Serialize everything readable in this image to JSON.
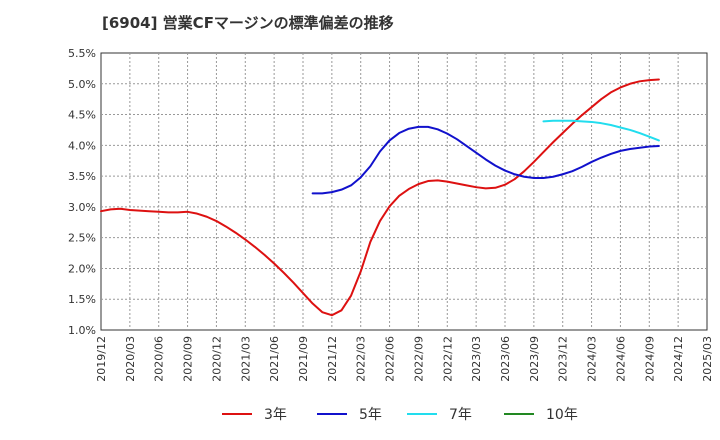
{
  "chart_data": {
    "type": "line",
    "title": "[6904]  営業CFマージンの標準偏差の推移",
    "ylim": [
      1.0,
      5.5
    ],
    "y_ticks": [
      "1.0%",
      "1.5%",
      "2.0%",
      "2.5%",
      "3.0%",
      "3.5%",
      "4.0%",
      "4.5%",
      "5.0%",
      "5.5%"
    ],
    "x_range": [
      "2019/12",
      "2025/03"
    ],
    "x_ticks": [
      "2019/12",
      "2020/03",
      "2020/06",
      "2020/09",
      "2020/12",
      "2021/03",
      "2021/06",
      "2021/09",
      "2021/12",
      "2022/03",
      "2022/06",
      "2022/09",
      "2022/12",
      "2023/03",
      "2023/06",
      "2023/09",
      "2023/12",
      "2024/03",
      "2024/06",
      "2024/09",
      "2024/12",
      "2025/03"
    ],
    "grid": true,
    "legend_position": "bottom",
    "series": [
      {
        "name": "3年",
        "color": "#dd1111",
        "points": [
          [
            "2019/12",
            2.93
          ],
          [
            "2020/01",
            2.96
          ],
          [
            "2020/02",
            2.97
          ],
          [
            "2020/03",
            2.95
          ],
          [
            "2020/04",
            2.94
          ],
          [
            "2020/05",
            2.93
          ],
          [
            "2020/06",
            2.92
          ],
          [
            "2020/07",
            2.91
          ],
          [
            "2020/08",
            2.91
          ],
          [
            "2020/09",
            2.92
          ],
          [
            "2020/10",
            2.89
          ],
          [
            "2020/11",
            2.84
          ],
          [
            "2020/12",
            2.77
          ],
          [
            "2021/01",
            2.68
          ],
          [
            "2021/02",
            2.58
          ],
          [
            "2021/03",
            2.47
          ],
          [
            "2021/04",
            2.35
          ],
          [
            "2021/05",
            2.22
          ],
          [
            "2021/06",
            2.08
          ],
          [
            "2021/07",
            1.93
          ],
          [
            "2021/08",
            1.77
          ],
          [
            "2021/09",
            1.6
          ],
          [
            "2021/10",
            1.43
          ],
          [
            "2021/11",
            1.29
          ],
          [
            "2021/12",
            1.24
          ],
          [
            "2022/01",
            1.32
          ],
          [
            "2022/02",
            1.56
          ],
          [
            "2022/03",
            1.95
          ],
          [
            "2022/04",
            2.43
          ],
          [
            "2022/05",
            2.77
          ],
          [
            "2022/06",
            3.01
          ],
          [
            "2022/07",
            3.18
          ],
          [
            "2022/08",
            3.29
          ],
          [
            "2022/09",
            3.37
          ],
          [
            "2022/10",
            3.42
          ],
          [
            "2022/11",
            3.43
          ],
          [
            "2022/12",
            3.41
          ],
          [
            "2023/01",
            3.38
          ],
          [
            "2023/02",
            3.35
          ],
          [
            "2023/03",
            3.32
          ],
          [
            "2023/04",
            3.3
          ],
          [
            "2023/05",
            3.31
          ],
          [
            "2023/06",
            3.36
          ],
          [
            "2023/07",
            3.45
          ],
          [
            "2023/08",
            3.58
          ],
          [
            "2023/09",
            3.73
          ],
          [
            "2023/10",
            3.89
          ],
          [
            "2023/11",
            4.05
          ],
          [
            "2023/12",
            4.2
          ],
          [
            "2024/01",
            4.35
          ],
          [
            "2024/02",
            4.49
          ],
          [
            "2024/03",
            4.62
          ],
          [
            "2024/04",
            4.75
          ],
          [
            "2024/05",
            4.86
          ],
          [
            "2024/06",
            4.94
          ],
          [
            "2024/07",
            5.0
          ],
          [
            "2024/08",
            5.04
          ],
          [
            "2024/09",
            5.06
          ],
          [
            "2024/10",
            5.07
          ]
        ]
      },
      {
        "name": "5年",
        "color": "#1111cc",
        "points": [
          [
            "2021/10",
            3.22
          ],
          [
            "2021/11",
            3.22
          ],
          [
            "2021/12",
            3.24
          ],
          [
            "2022/01",
            3.28
          ],
          [
            "2022/02",
            3.35
          ],
          [
            "2022/03",
            3.48
          ],
          [
            "2022/04",
            3.66
          ],
          [
            "2022/05",
            3.9
          ],
          [
            "2022/06",
            4.08
          ],
          [
            "2022/07",
            4.2
          ],
          [
            "2022/08",
            4.27
          ],
          [
            "2022/09",
            4.3
          ],
          [
            "2022/10",
            4.3
          ],
          [
            "2022/11",
            4.26
          ],
          [
            "2022/12",
            4.19
          ],
          [
            "2023/01",
            4.1
          ],
          [
            "2023/02",
            3.99
          ],
          [
            "2023/03",
            3.88
          ],
          [
            "2023/04",
            3.77
          ],
          [
            "2023/05",
            3.67
          ],
          [
            "2023/06",
            3.59
          ],
          [
            "2023/07",
            3.53
          ],
          [
            "2023/08",
            3.49
          ],
          [
            "2023/09",
            3.47
          ],
          [
            "2023/10",
            3.47
          ],
          [
            "2023/11",
            3.49
          ],
          [
            "2023/12",
            3.53
          ],
          [
            "2024/01",
            3.58
          ],
          [
            "2024/02",
            3.65
          ],
          [
            "2024/03",
            3.73
          ],
          [
            "2024/04",
            3.8
          ],
          [
            "2024/05",
            3.86
          ],
          [
            "2024/06",
            3.91
          ],
          [
            "2024/07",
            3.94
          ],
          [
            "2024/08",
            3.96
          ],
          [
            "2024/09",
            3.98
          ],
          [
            "2024/10",
            3.99
          ]
        ]
      },
      {
        "name": "7年",
        "color": "#22ddee",
        "points": [
          [
            "2023/10",
            4.39
          ],
          [
            "2023/11",
            4.4
          ],
          [
            "2023/12",
            4.4
          ],
          [
            "2024/01",
            4.4
          ],
          [
            "2024/02",
            4.39
          ],
          [
            "2024/03",
            4.38
          ],
          [
            "2024/04",
            4.36
          ],
          [
            "2024/05",
            4.33
          ],
          [
            "2024/06",
            4.29
          ],
          [
            "2024/07",
            4.25
          ],
          [
            "2024/08",
            4.2
          ],
          [
            "2024/09",
            4.14
          ],
          [
            "2024/10",
            4.08
          ]
        ]
      },
      {
        "name": "10年",
        "color": "#228822",
        "points": []
      }
    ]
  }
}
